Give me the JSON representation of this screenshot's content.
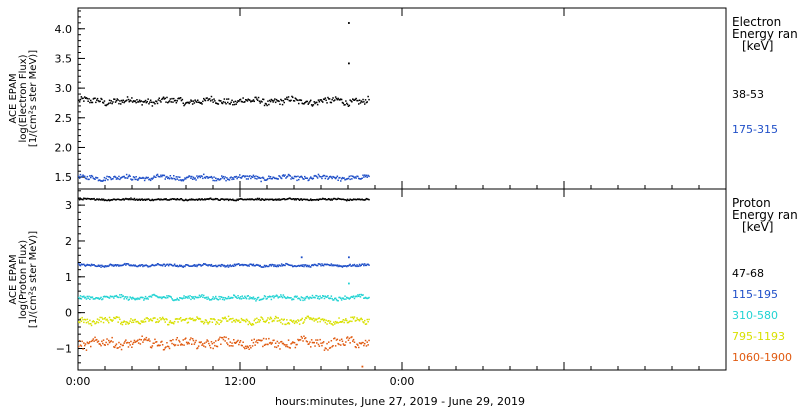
{
  "chart_data": [
    {
      "type": "scatter",
      "panel": "electron",
      "ylabel": [
        "ACE EPAM",
        "log(Electron Flux)",
        "[1/(cm²s ster MeV)]"
      ],
      "ylim": [
        1.3,
        4.35
      ],
      "yticks": [
        1.5,
        2.0,
        2.5,
        3.0,
        3.5,
        4.0
      ],
      "ytick_labels": [
        "1.5",
        "2.0",
        "2.5",
        "3.0",
        "3.5",
        "4.0"
      ],
      "legend_title": [
        "Electron",
        "Energy ran",
        "[keV]"
      ],
      "x_end_hours": 21.5,
      "series": [
        {
          "name": "38-53",
          "color": "#000000",
          "mean": 2.78,
          "amp": 0.07
        },
        {
          "name": "175-315",
          "color": "#1f4fc8",
          "mean": 1.49,
          "amp": 0.05
        }
      ],
      "outliers": [
        {
          "series": 0,
          "x": 20.0,
          "y": 4.1
        },
        {
          "series": 0,
          "x": 20.0,
          "y": 3.42
        }
      ]
    },
    {
      "type": "scatter",
      "panel": "proton",
      "ylabel": [
        "ACE EPAM",
        "log(Proton Flux)",
        "[1/(cm²s ster MeV)]"
      ],
      "ylim": [
        -1.6,
        3.45
      ],
      "yticks": [
        -1,
        0,
        1,
        2,
        3
      ],
      "ytick_labels": [
        "−1",
        "0",
        "1",
        "2",
        "3"
      ],
      "legend_title": [
        "Proton",
        "Energy ran",
        "[keV]"
      ],
      "x_end_hours": 21.5,
      "series": [
        {
          "name": "47-68",
          "color": "#000000",
          "mean": 3.16,
          "amp": 0.03
        },
        {
          "name": "115-195",
          "color": "#1f4fc8",
          "mean": 1.32,
          "amp": 0.04
        },
        {
          "name": "310-580",
          "color": "#22d3d3",
          "mean": 0.42,
          "amp": 0.07
        },
        {
          "name": "795-1193",
          "color": "#d8e000",
          "mean": -0.22,
          "amp": 0.11
        },
        {
          "name": "1060-1900",
          "color": "#e05a10",
          "mean": -0.85,
          "amp": 0.16
        }
      ],
      "outliers": [
        {
          "series": 1,
          "x": 16.5,
          "y": 1.55
        },
        {
          "series": 1,
          "x": 20.0,
          "y": 1.55
        },
        {
          "series": 2,
          "x": 20.0,
          "y": 0.82
        },
        {
          "series": 4,
          "x": 21.0,
          "y": -1.5
        }
      ]
    }
  ],
  "x_axis": {
    "xlim_hours": [
      0,
      48
    ],
    "ticks_hours": [
      0,
      12,
      24,
      36
    ],
    "tick_labels": [
      "0:00",
      "12:00",
      "0:00",
      ""
    ],
    "minor_step_hours": 2,
    "label": "hours:minutes, June 27, 2019 - June 29, 2019"
  },
  "colors": {
    "frame": "#000000",
    "background": "#ffffff"
  }
}
